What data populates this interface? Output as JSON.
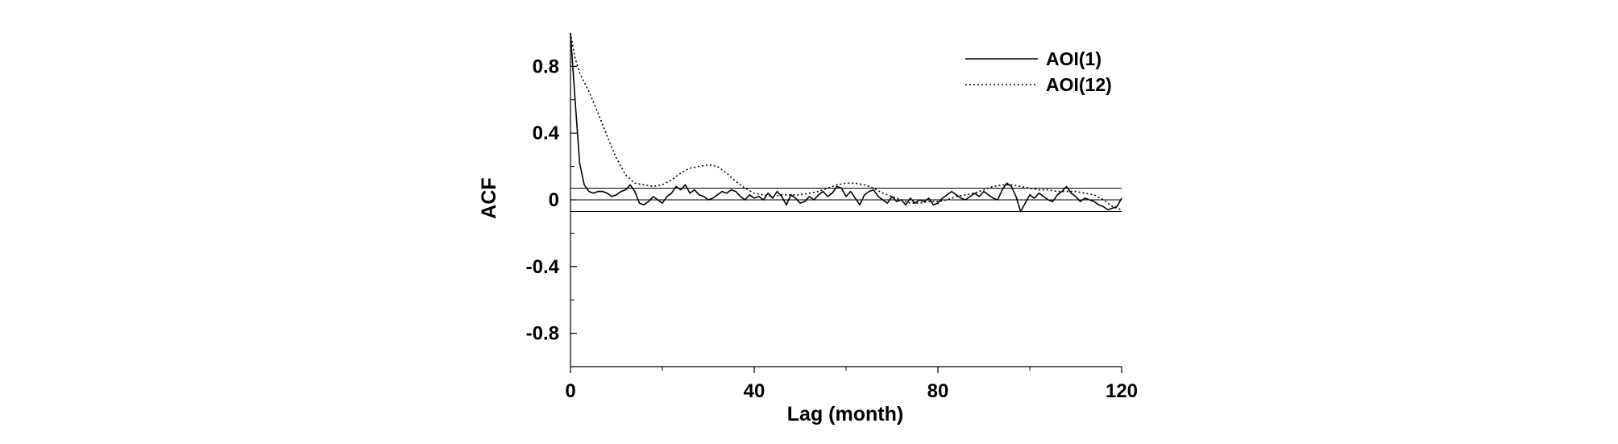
{
  "chart_data": {
    "type": "line",
    "title": "",
    "xlabel": "Lag (month)",
    "ylabel": "ACF",
    "xlim": [
      0,
      120
    ],
    "ylim": [
      -1.0,
      1.0
    ],
    "x_ticks": [
      0,
      40,
      80,
      120
    ],
    "x_tick_labels": [
      "0",
      "40",
      "80",
      "120"
    ],
    "y_ticks": [
      0.8,
      0.4,
      0,
      -0.4,
      -0.8
    ],
    "y_tick_labels": [
      "0.8",
      "0.4",
      "0",
      "-0.4",
      "-0.8"
    ],
    "grid": false,
    "legend_position": "top-right",
    "confidence_band": [
      -0.07,
      0.07
    ],
    "series": [
      {
        "name": "AOI(1)",
        "style": "solid",
        "color": "#000000",
        "x": [
          0,
          1,
          2,
          3,
          4,
          5,
          6,
          7,
          8,
          9,
          10,
          11,
          12,
          13,
          14,
          15,
          16,
          17,
          18,
          19,
          20,
          21,
          22,
          23,
          24,
          25,
          26,
          27,
          28,
          29,
          30,
          31,
          32,
          33,
          34,
          35,
          36,
          37,
          38,
          39,
          40,
          41,
          42,
          43,
          44,
          45,
          46,
          47,
          48,
          49,
          50,
          51,
          52,
          53,
          54,
          55,
          56,
          57,
          58,
          59,
          60,
          61,
          62,
          63,
          64,
          65,
          66,
          67,
          68,
          69,
          70,
          71,
          72,
          73,
          74,
          75,
          76,
          77,
          78,
          79,
          80,
          81,
          82,
          83,
          84,
          85,
          86,
          87,
          88,
          89,
          90,
          91,
          92,
          93,
          94,
          95,
          96,
          97,
          98,
          99,
          100,
          101,
          102,
          103,
          104,
          105,
          106,
          107,
          108,
          109,
          110,
          111,
          112,
          113,
          114,
          115,
          116,
          117,
          118,
          119,
          120
        ],
        "values": [
          1.0,
          0.6,
          0.22,
          0.09,
          0.05,
          0.04,
          0.05,
          0.05,
          0.04,
          0.02,
          0.03,
          0.05,
          0.06,
          0.09,
          0.05,
          -0.02,
          -0.03,
          -0.01,
          0.02,
          0.0,
          -0.02,
          0.02,
          0.04,
          0.08,
          0.06,
          0.09,
          0.04,
          0.06,
          0.03,
          0.02,
          0.0,
          0.01,
          0.03,
          0.05,
          0.04,
          0.06,
          0.05,
          0.02,
          0.0,
          0.03,
          0.01,
          0.02,
          0.0,
          0.04,
          0.01,
          0.05,
          0.02,
          -0.03,
          0.03,
          0.01,
          -0.02,
          -0.01,
          0.02,
          0.0,
          0.03,
          0.05,
          0.02,
          0.04,
          0.08,
          0.07,
          0.02,
          0.05,
          0.01,
          -0.03,
          0.03,
          0.05,
          0.06,
          0.02,
          0.0,
          -0.02,
          0.02,
          -0.01,
          0.0,
          -0.03,
          0.01,
          -0.02,
          0.0,
          -0.01,
          0.01,
          -0.03,
          -0.02,
          0.01,
          0.03,
          0.05,
          0.03,
          0.01,
          0.0,
          0.02,
          0.04,
          0.02,
          0.05,
          0.03,
          0.01,
          0.0,
          0.06,
          0.1,
          0.08,
          0.02,
          -0.07,
          -0.02,
          0.03,
          0.01,
          0.04,
          0.02,
          0.0,
          -0.01,
          0.03,
          0.05,
          0.08,
          0.04,
          0.02,
          -0.01,
          0.01,
          0.0,
          -0.01,
          -0.03,
          -0.04,
          -0.06,
          -0.05,
          -0.04,
          0.01
        ]
      },
      {
        "name": "AOI(12)",
        "style": "dotted",
        "color": "#000000",
        "x": [
          0,
          1,
          2,
          4,
          6,
          8,
          10,
          12,
          14,
          16,
          18,
          20,
          22,
          24,
          26,
          28,
          30,
          32,
          34,
          36,
          38,
          40,
          42,
          44,
          46,
          48,
          50,
          52,
          54,
          56,
          58,
          60,
          62,
          64,
          66,
          68,
          70,
          72,
          74,
          76,
          78,
          80,
          82,
          84,
          86,
          88,
          90,
          92,
          94,
          96,
          98,
          100,
          102,
          104,
          106,
          108,
          110,
          112,
          114,
          116,
          118,
          120
        ],
        "values": [
          1.0,
          0.85,
          0.76,
          0.65,
          0.52,
          0.38,
          0.25,
          0.15,
          0.1,
          0.09,
          0.08,
          0.09,
          0.12,
          0.16,
          0.19,
          0.2,
          0.21,
          0.2,
          0.16,
          0.11,
          0.07,
          0.04,
          0.03,
          0.02,
          0.03,
          0.03,
          0.03,
          0.04,
          0.05,
          0.07,
          0.09,
          0.1,
          0.1,
          0.09,
          0.07,
          0.04,
          0.02,
          0.0,
          -0.02,
          -0.02,
          -0.01,
          -0.01,
          0.0,
          0.02,
          0.03,
          0.04,
          0.06,
          0.08,
          0.09,
          0.09,
          0.08,
          0.07,
          0.06,
          0.06,
          0.05,
          0.05,
          0.05,
          0.04,
          0.03,
          0.0,
          -0.04,
          -0.06
        ]
      }
    ]
  }
}
